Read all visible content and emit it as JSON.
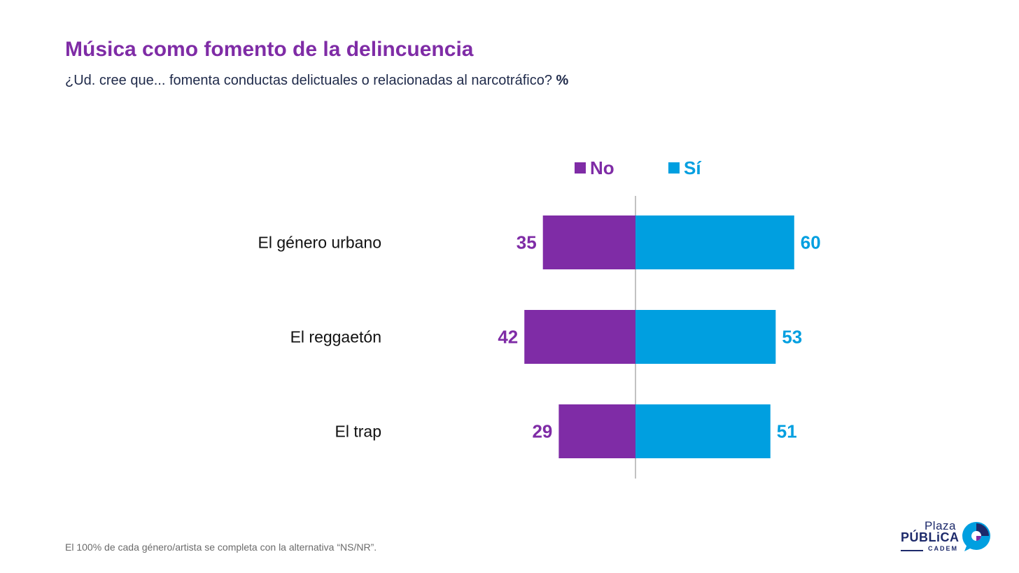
{
  "title": "Música como fomento de la delincuencia",
  "subtitle": {
    "text": "¿Ud. cree que... fomenta conductas delictuales o relacionadas al narcotráfico?",
    "unit": "%"
  },
  "legend": {
    "no": "No",
    "si": "Sí"
  },
  "colors": {
    "no": "#7f2ca6",
    "si": "#009fe0",
    "axis": "#9a9a9a",
    "label": "#111111"
  },
  "chart_data": {
    "type": "bar",
    "orientation": "horizontal-diverging",
    "title": "Música como fomento de la delincuencia",
    "unit": "%",
    "categories": [
      "El género urbano",
      "El reggaetón",
      "El trap"
    ],
    "series": [
      {
        "name": "No",
        "values": [
          35,
          42,
          29
        ]
      },
      {
        "name": "Sí",
        "values": [
          60,
          53,
          51
        ]
      }
    ]
  },
  "footnote": "El 100% de cada género/artista se completa con la alternativa “NS/NR”.",
  "logo": {
    "line1": "Plaza",
    "line2": "PÚBLiCA",
    "line3": "CADEM"
  }
}
